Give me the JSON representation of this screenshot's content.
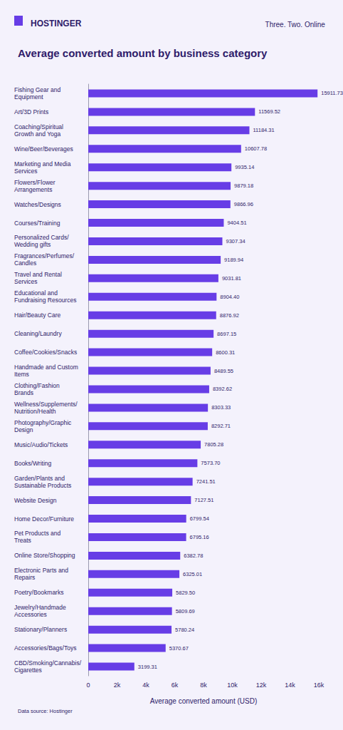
{
  "chart_data": {
    "type": "bar",
    "orientation": "horizontal",
    "title": "Average converted amount by business category",
    "annotations": [
      "HOSTINGER",
      "Three. Two. Online",
      "Data source: Hostinger"
    ],
    "xlabel": "Average converted amount (USD)",
    "categories": [
      "Fishing Gear and Equipment",
      "Art/3D Prints",
      "Coaching/Spiritual Growth and Yoga",
      "Wine/Beer/Beverages",
      "Marketing and Media Services",
      "Flowers/Flower Arrangements",
      "Watches/Designs",
      "Courses/Training",
      "Personalized Cards/Wedding gifts",
      "Fragrances/Perfumes/Candles",
      "Travel and Rental Services",
      "Educational and Fundraising Resources",
      "Hair/Beauty Care",
      "Cleaning/Laundry",
      "Coffee/Cookies/Snacks",
      "Handmade and Custom Items",
      "Clothing/Fashion Brands",
      "Wellness/Supplements/Nutrition/Health",
      "Photography/Graphic Design",
      "Music/Audio/Tickets",
      "Books/Writing",
      "Garden/Plants and Sustainable Products",
      "Website Design",
      "Home Decor/Furniture",
      "Pet Products and Treats",
      "Online Store/Shopping",
      "Electronic Parts and Repairs",
      "Poetry/Bookmarks",
      "Jewelry/Handmade Accessories",
      "Stationary/Planners",
      "Accessories/Bags/Toys",
      "CBD/Smoking/Cannabis/Cigarettes"
    ],
    "values": [
      15911.73,
      11569.52,
      11184.31,
      10607.78,
      9935.14,
      9879.18,
      9866.96,
      9404.51,
      9307.34,
      9189.94,
      9031.81,
      8904.4,
      8876.92,
      8697.15,
      8600.31,
      8489.55,
      8392.62,
      8303.33,
      8292.71,
      7805.28,
      7573.7,
      7241.51,
      7127.51,
      6799.54,
      6795.16,
      6382.78,
      6325.01,
      5829.5,
      5809.69,
      5780.24,
      5370.67,
      3199.31
    ],
    "value_labels": [
      "15911.73",
      "11569.52",
      "11184.31",
      "10607.78",
      "9935.14",
      "9879.18",
      "9866.96",
      "9404.51",
      "9307.34",
      "9189.94",
      "9031.81",
      "8904.40",
      "8876.92",
      "8697.15",
      "8600.31",
      "8489.55",
      "8392.62",
      "8303.33",
      "8292.71",
      "7805.28",
      "7573.70",
      "7241.51",
      "7127.51",
      "6799.54",
      "6795.16",
      "6382.78",
      "6325.01",
      "5829.50",
      "5809.69",
      "5780.24",
      "5370.67",
      "3199.31"
    ],
    "color": "#673de6",
    "data_labels": true,
    "xlim": [
      0,
      16000
    ],
    "xticks": [
      0,
      {
        "value": 2000,
        "label": "2k"
      },
      {
        "value": 4000,
        "label": "4k"
      },
      {
        "value": 6000,
        "label": "6k"
      },
      {
        "value": 8000,
        "label": "8k"
      },
      {
        "value": 10000,
        "label": "10k"
      },
      {
        "value": 12000,
        "label": "12k"
      },
      {
        "value": 14000,
        "label": "14k"
      },
      {
        "value": 16000,
        "label": "16k"
      }
    ],
    "grid": false
  }
}
